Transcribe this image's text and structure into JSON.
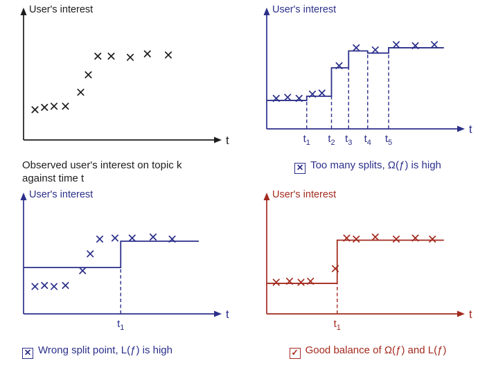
{
  "figure": {
    "background": "#ffffff"
  },
  "panels": [
    {
      "name": "observed",
      "color": "#1c1c1c",
      "caption_lines": [
        "Observed user's interest on topic k",
        "against time t"
      ]
    },
    {
      "name": "too-many-splits",
      "color": "#2b2f8a",
      "icon": "✕",
      "caption": "Too many splits, Ω(ƒ) is high"
    },
    {
      "name": "wrong-split",
      "color": "#2b2f8a",
      "icon": "✕",
      "caption": "Wrong split point, L(ƒ) is high"
    },
    {
      "name": "good-balance",
      "color": "#a32a1e",
      "icon": "✓",
      "caption": "Good balance of Ω(ƒ) and L(ƒ)"
    }
  ],
  "chart_data": [
    {
      "type": "scatter",
      "title": "Observed user's interest on topic k against time t",
      "ylabel": "User's interest",
      "xlabel": "t",
      "x_range": [
        0,
        100
      ],
      "y_range": [
        0,
        100
      ],
      "points": [
        [
          6,
          26
        ],
        [
          11,
          28
        ],
        [
          16,
          29
        ],
        [
          22,
          29
        ],
        [
          30,
          41
        ],
        [
          34,
          56
        ],
        [
          39,
          72
        ],
        [
          46,
          72
        ],
        [
          56,
          71
        ],
        [
          65,
          74
        ],
        [
          76,
          73
        ]
      ],
      "steps": [],
      "splits": []
    },
    {
      "type": "step",
      "title": "Too many splits, Ω(f) is high",
      "ylabel": "User's interest",
      "xlabel": "t",
      "x_range": [
        0,
        100
      ],
      "y_range": [
        0,
        100
      ],
      "points": [
        [
          5,
          29
        ],
        [
          11,
          30
        ],
        [
          17,
          29
        ],
        [
          24,
          33
        ],
        [
          29,
          34
        ],
        [
          38,
          60
        ],
        [
          47,
          77
        ],
        [
          57,
          75
        ],
        [
          68,
          80
        ],
        [
          78,
          79
        ],
        [
          88,
          80
        ]
      ],
      "steps": [
        {
          "x0": 0,
          "x1": 21,
          "y": 27
        },
        {
          "x0": 21,
          "x1": 34,
          "y": 31
        },
        {
          "x0": 34,
          "x1": 43,
          "y": 58
        },
        {
          "x0": 43,
          "x1": 53,
          "y": 74
        },
        {
          "x0": 53,
          "x1": 64,
          "y": 72
        },
        {
          "x0": 64,
          "x1": 93,
          "y": 77
        }
      ],
      "splits": [
        {
          "x": 21,
          "label": "t",
          "sub": "1",
          "dash_to": 27
        },
        {
          "x": 34,
          "label": "t",
          "sub": "2",
          "dash_to": 31
        },
        {
          "x": 43,
          "label": "t",
          "sub": "3",
          "dash_to": 58
        },
        {
          "x": 53,
          "label": "t",
          "sub": "4",
          "dash_to": 74
        },
        {
          "x": 64,
          "label": "t",
          "sub": "5",
          "dash_to": 72
        }
      ]
    },
    {
      "type": "step",
      "title": "Wrong split point, L(f) is high",
      "ylabel": "User's interest",
      "xlabel": "t",
      "x_range": [
        0,
        100
      ],
      "y_range": [
        0,
        100
      ],
      "points": [
        [
          6,
          26
        ],
        [
          11,
          27
        ],
        [
          16,
          26
        ],
        [
          22,
          27
        ],
        [
          31,
          41
        ],
        [
          35,
          57
        ],
        [
          40,
          71
        ],
        [
          48,
          72
        ],
        [
          57,
          72
        ],
        [
          68,
          73
        ],
        [
          78,
          71
        ]
      ],
      "steps": [
        {
          "x0": 0,
          "x1": 51,
          "y": 44
        },
        {
          "x0": 51,
          "x1": 92,
          "y": 69
        }
      ],
      "splits": [
        {
          "x": 51,
          "label": "t",
          "sub": "1",
          "dash_to": 44
        }
      ]
    },
    {
      "type": "step",
      "title": "Good balance of Ω(f) and L(f)",
      "ylabel": "User's interest",
      "xlabel": "t",
      "x_range": [
        0,
        100
      ],
      "y_range": [
        0,
        100
      ],
      "points": [
        [
          5,
          30
        ],
        [
          12,
          31
        ],
        [
          18,
          30
        ],
        [
          23,
          31
        ],
        [
          36,
          43
        ],
        [
          42,
          72
        ],
        [
          47,
          71
        ],
        [
          57,
          73
        ],
        [
          68,
          71
        ],
        [
          78,
          72
        ],
        [
          87,
          71
        ]
      ],
      "steps": [
        {
          "x0": 0,
          "x1": 37,
          "y": 29
        },
        {
          "x0": 37,
          "x1": 93,
          "y": 70
        }
      ],
      "splits": [
        {
          "x": 37,
          "label": "t",
          "sub": "1",
          "dash_to": 29
        }
      ]
    }
  ]
}
